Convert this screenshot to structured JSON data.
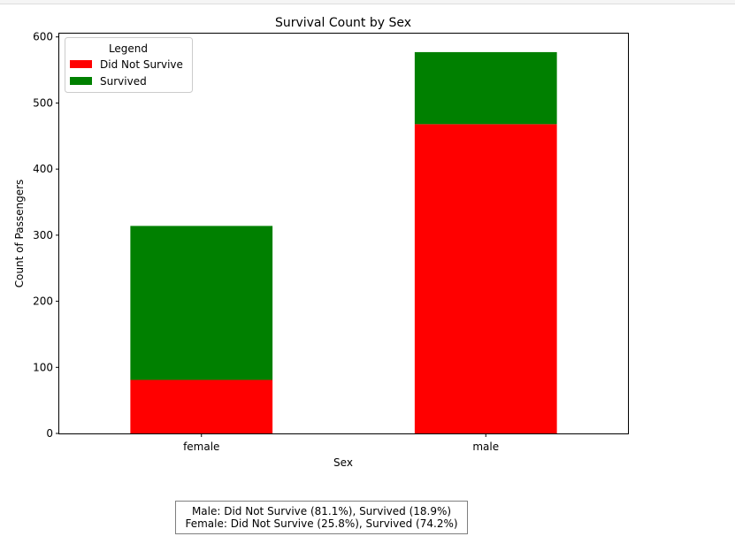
{
  "chart_data": {
    "type": "bar",
    "stacked": true,
    "title": "Survival Count by Sex",
    "xlabel": "Sex",
    "ylabel": "Count of Passengers",
    "categories": [
      "female",
      "male"
    ],
    "series": [
      {
        "name": "Did Not Survive",
        "values": [
          81,
          468
        ],
        "color": "#ff0000"
      },
      {
        "name": "Survived",
        "values": [
          233,
          109
        ],
        "color": "#008000"
      }
    ],
    "ylim": [
      0,
      605
    ],
    "yticks": [
      0,
      100,
      200,
      300,
      400,
      500,
      600
    ],
    "grid": false,
    "legend": {
      "title": "Legend",
      "placement": "top-left"
    }
  },
  "annotation": {
    "lines": [
      "Male: Did Not Survive (81.1%), Survived (18.9%)",
      "Female: Did Not Survive (25.8%), Survived (74.2%)"
    ]
  }
}
